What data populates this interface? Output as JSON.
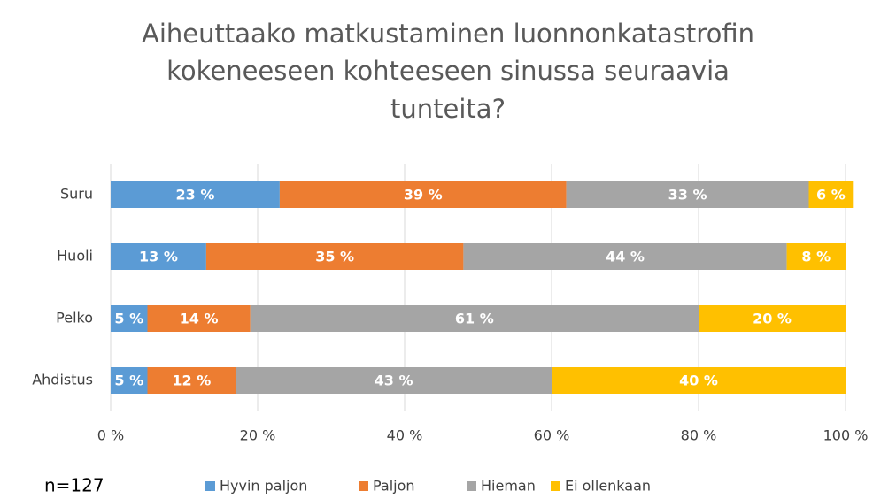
{
  "chart_data": {
    "type": "stacked_barh",
    "title": [
      "Aiheuttaako matkustaminen luonnonkatastrofin",
      "kokeneeseen kohteeseen sinussa seuraavia",
      "tunteita?"
    ],
    "annotation": "n=127",
    "categories": [
      "Suru",
      "Huoli",
      "Pelko",
      "Ahdistus"
    ],
    "series": [
      {
        "name": "Hyvin paljon",
        "color": "#5b9bd5",
        "values": [
          23,
          13,
          5,
          5
        ],
        "value_labels": [
          "23 %",
          "13 %",
          "5 %",
          "5 %"
        ]
      },
      {
        "name": "Paljon",
        "color": "#ed7d31",
        "values": [
          39,
          35,
          14,
          12
        ],
        "value_labels": [
          "39 %",
          "35 %",
          "14 %",
          "12 %"
        ]
      },
      {
        "name": "Hieman",
        "color": "#a5a5a5",
        "values": [
          33,
          44,
          61,
          43
        ],
        "value_labels": [
          "33 %",
          "44 %",
          "61 %",
          "43 %"
        ]
      },
      {
        "name": "Ei ollenkaan",
        "color": "#ffc000",
        "values": [
          6,
          8,
          20,
          40
        ],
        "value_labels": [
          "6 %",
          "8 %",
          "20 %",
          "40 %"
        ]
      }
    ],
    "xlim": [
      0,
      100
    ],
    "xticks": [
      {
        "value": 0,
        "label": "0 %"
      },
      {
        "value": 20,
        "label": "20 %"
      },
      {
        "value": 40,
        "label": "40 %"
      },
      {
        "value": 60,
        "label": "60 %"
      },
      {
        "value": 80,
        "label": "80 %"
      },
      {
        "value": 100,
        "label": "100 %"
      }
    ],
    "grid": true,
    "legend": "bottom"
  }
}
